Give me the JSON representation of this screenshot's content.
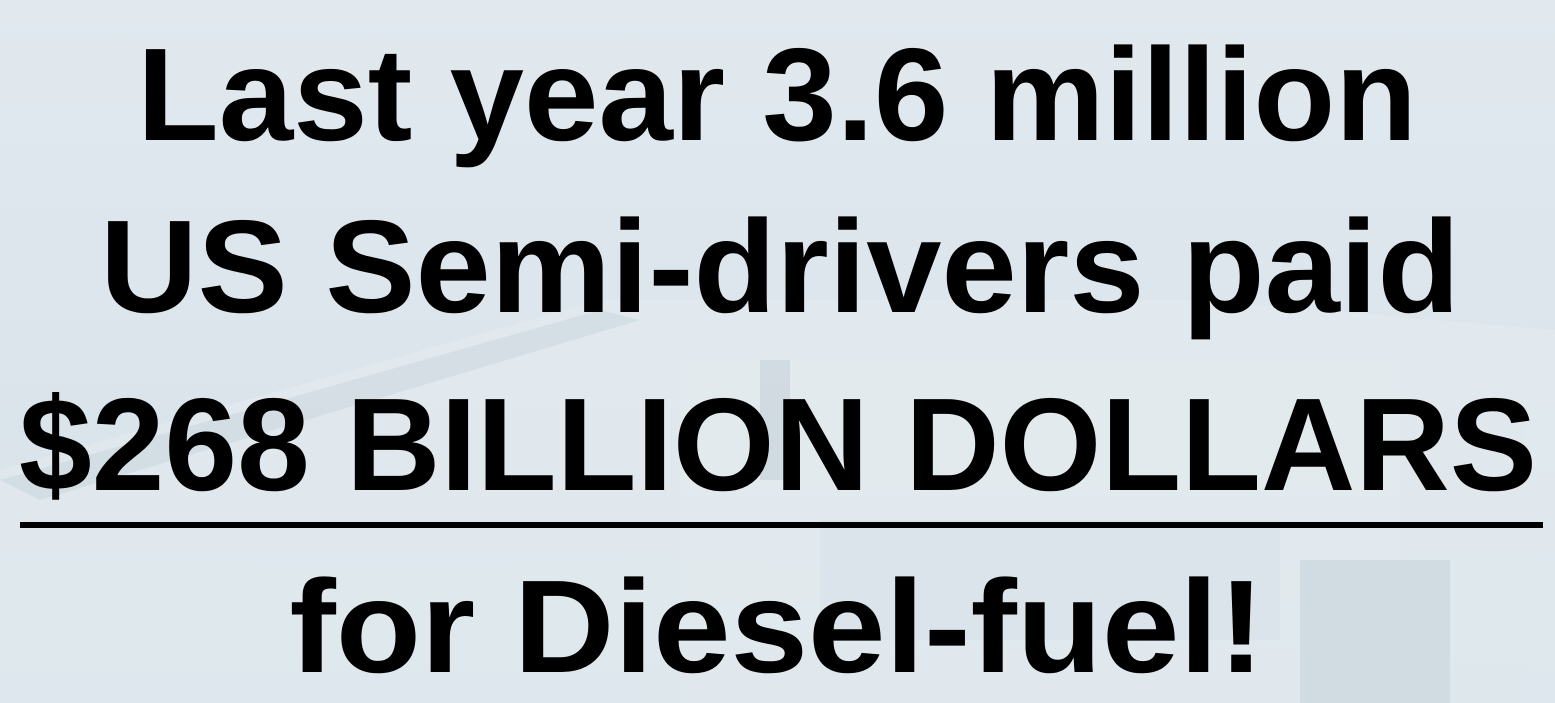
{
  "slide": {
    "lines": [
      "Last year 3.6 million",
      "US Semi-drivers paid",
      "$268 BILLION DOLLARS",
      "for Diesel-fuel!"
    ]
  }
}
